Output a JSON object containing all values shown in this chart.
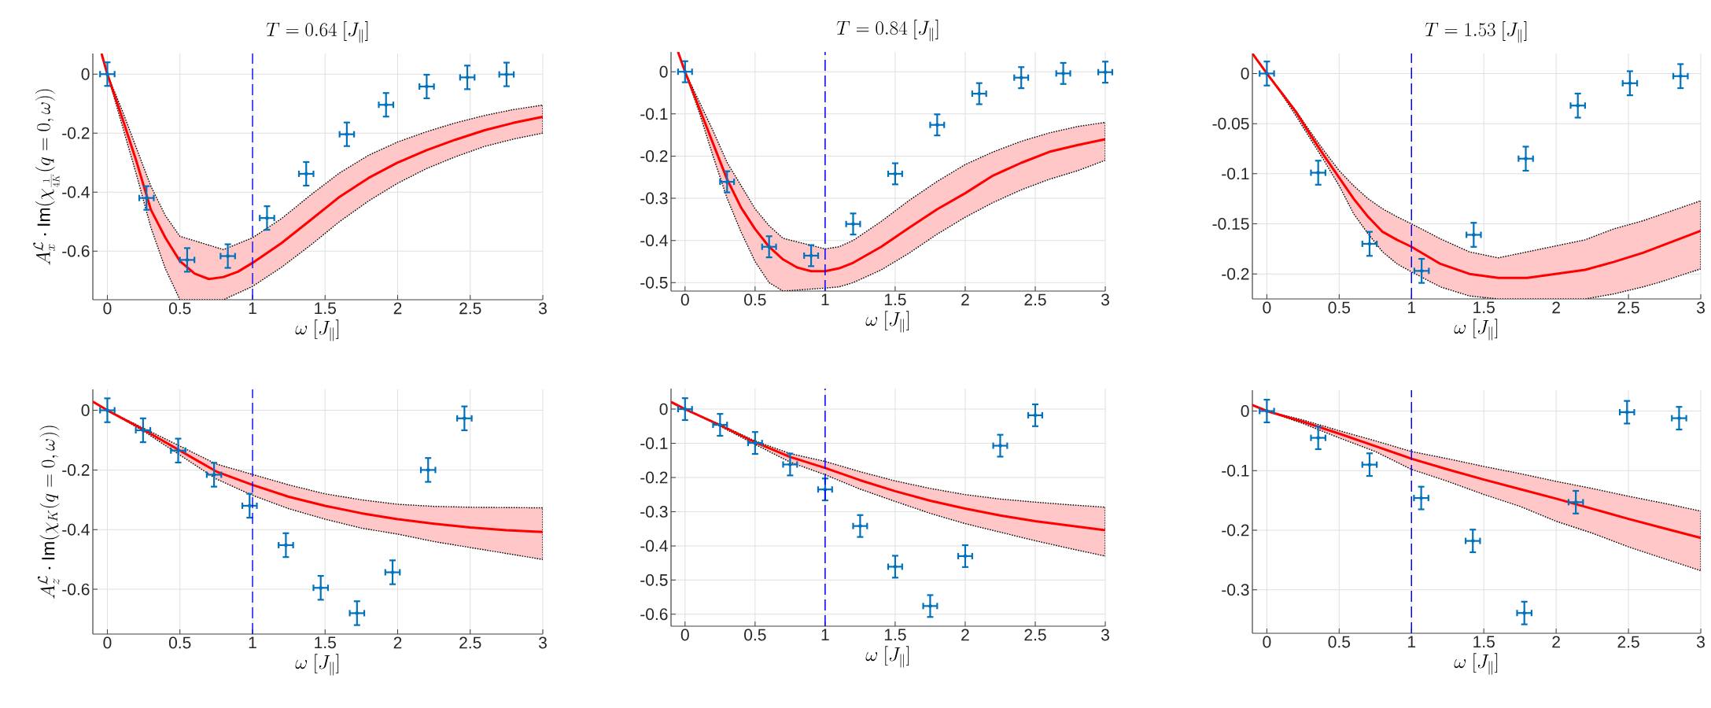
{
  "chart_data": [
    {
      "type": "scatter",
      "title": "T = 0.64\\ [J_{\\parallel}]",
      "xlabel": "\\omega\\ [J_{\\parallel}]",
      "ylabel": "A^{\\mathcal{L}}_{x} \\cdot \\mathrm{Im}(\\chi_{\\frac{1}{4K}}(q=0,\\omega))",
      "xlim": [
        -0.1,
        3
      ],
      "ylim": [
        -0.765,
        0.07
      ],
      "xticks": [
        0,
        0.5,
        1,
        1.5,
        2,
        2.5,
        3
      ],
      "yticks": [
        -0.6,
        -0.4,
        -0.2,
        0
      ],
      "grid": true,
      "ref_lines": [
        {
          "axis": "x",
          "value": 1,
          "color": "#0000ff",
          "line_style": "dashed"
        }
      ],
      "series": [
        {
          "type": "line",
          "color": "#ff0000",
          "marker": "none",
          "x": [
            -0.04,
            0,
            0.1,
            0.2,
            0.3,
            0.4,
            0.5,
            0.8,
            1.0,
            1.2,
            1.4,
            1.6,
            1.8,
            2.0,
            2.2,
            2.4,
            2.6,
            2.8,
            3.0
          ],
          "values": [
            null,
            null,
            null,
            null,
            null,
            null,
            null,
            null,
            null,
            null,
            null,
            null,
            null,
            null,
            null,
            null,
            null,
            null,
            null
          ],
          "upper": [
            0.07,
            0,
            -0.12,
            -0.25,
            -0.38,
            -0.48,
            -0.55,
            -0.595,
            -0.555,
            -0.49,
            -0.41,
            -0.335,
            -0.275,
            -0.23,
            -0.195,
            -0.165,
            -0.14,
            -0.12,
            -0.105
          ],
          "lower": [
            0.07,
            0,
            -0.17,
            -0.34,
            -0.52,
            -0.66,
            -0.765,
            -0.765,
            -0.72,
            -0.655,
            -0.58,
            -0.5,
            -0.43,
            -0.37,
            -0.32,
            -0.28,
            -0.245,
            -0.22,
            -0.2
          ]
        },
        {
          "type": "line",
          "color": "#ff0000",
          "marker": "none",
          "x": [
            -0.04,
            0,
            0.1,
            0.2,
            0.3,
            0.4,
            0.5,
            0.6,
            0.7,
            0.8,
            0.9,
            1.0,
            1.2,
            1.4,
            1.6,
            1.8,
            2.0,
            2.2,
            2.4,
            2.6,
            2.8,
            3.0
          ],
          "values": [
            0.07,
            0,
            -0.145,
            -0.295,
            -0.46,
            -0.555,
            -0.634,
            -0.676,
            -0.695,
            -0.688,
            -0.67,
            -0.64,
            -0.573,
            -0.495,
            -0.416,
            -0.352,
            -0.3,
            -0.258,
            -0.222,
            -0.19,
            -0.165,
            -0.145
          ]
        },
        {
          "type": "scatter",
          "color": "#0072bd",
          "marker": "circle",
          "x": [
            0,
            0.27,
            0.55,
            0.83,
            1.1,
            1.37,
            1.65,
            1.92,
            2.2,
            2.48,
            2.75
          ],
          "values": [
            0,
            -0.42,
            -0.63,
            -0.617,
            -0.488,
            -0.338,
            -0.204,
            -0.104,
            -0.042,
            -0.011,
            -0.001
          ],
          "errors": [
            0.04,
            0.04,
            0.04,
            0.04,
            0.04,
            0.04,
            0.04,
            0.04,
            0.04,
            0.04,
            0.04
          ],
          "xerrors": [
            0.05,
            0.05,
            0.05,
            0.05,
            0.05,
            0.05,
            0.05,
            0.05,
            0.05,
            0.05,
            0.05
          ]
        }
      ]
    },
    {
      "type": "scatter",
      "title": "T = 0.84\\ [J_{\\parallel}]",
      "xlabel": "\\omega\\ [J_{\\parallel}]",
      "xlim": [
        -0.1,
        3
      ],
      "ylim": [
        -0.52,
        0.047
      ],
      "xticks": [
        0,
        0.5,
        1,
        1.5,
        2,
        2.5,
        3
      ],
      "yticks": [
        -0.5,
        -0.4,
        -0.3,
        -0.2,
        -0.1,
        0
      ],
      "grid": true,
      "ref_lines": [
        {
          "axis": "x",
          "value": 1,
          "color": "#0000ff",
          "line_style": "dashed"
        }
      ],
      "series": [
        {
          "type": "line",
          "color": "#ff0000",
          "marker": "none",
          "x": [
            -0.05,
            0,
            0.1,
            0.2,
            0.3,
            0.4,
            0.5,
            0.6,
            0.7,
            1.0,
            1.1,
            1.2,
            1.4,
            1.6,
            1.8,
            2.0,
            2.2,
            2.4,
            2.6,
            2.8,
            3.0
          ],
          "values": [
            null,
            null,
            null,
            null,
            null,
            null,
            null,
            null,
            null,
            null,
            null,
            null,
            null,
            null,
            null,
            null,
            null,
            null,
            null,
            null,
            null
          ],
          "upper": [
            0.047,
            0,
            -0.07,
            -0.14,
            -0.215,
            -0.27,
            -0.325,
            -0.365,
            -0.395,
            -0.42,
            -0.415,
            -0.4,
            -0.355,
            -0.305,
            -0.26,
            -0.22,
            -0.19,
            -0.165,
            -0.145,
            -0.13,
            -0.12
          ],
          "lower": [
            0.047,
            0,
            -0.095,
            -0.2,
            -0.3,
            -0.38,
            -0.45,
            -0.5,
            -0.52,
            -0.513,
            -0.51,
            -0.5,
            -0.47,
            -0.43,
            -0.385,
            -0.345,
            -0.31,
            -0.28,
            -0.255,
            -0.235,
            -0.21
          ]
        },
        {
          "type": "line",
          "color": "#ff0000",
          "marker": "none",
          "x": [
            -0.05,
            0,
            0.1,
            0.2,
            0.3,
            0.4,
            0.5,
            0.6,
            0.7,
            0.8,
            0.9,
            1.0,
            1.1,
            1.2,
            1.4,
            1.6,
            1.8,
            2.0,
            2.2,
            2.4,
            2.6,
            2.8,
            3.0
          ],
          "values": [
            0.047,
            0,
            -0.085,
            -0.17,
            -0.255,
            -0.322,
            -0.373,
            -0.415,
            -0.445,
            -0.464,
            -0.473,
            -0.473,
            -0.466,
            -0.453,
            -0.415,
            -0.37,
            -0.326,
            -0.288,
            -0.246,
            -0.216,
            -0.19,
            -0.174,
            -0.16
          ]
        },
        {
          "type": "scatter",
          "color": "#0072bd",
          "marker": "circle",
          "x": [
            0,
            0.3,
            0.6,
            0.9,
            1.2,
            1.5,
            1.8,
            2.1,
            2.4,
            2.7,
            3.0
          ],
          "values": [
            0,
            -0.261,
            -0.415,
            -0.436,
            -0.361,
            -0.242,
            -0.126,
            -0.052,
            -0.014,
            -0.004,
            -0.001
          ],
          "errors": [
            0.025,
            0.025,
            0.025,
            0.025,
            0.025,
            0.025,
            0.025,
            0.025,
            0.025,
            0.025,
            0.025
          ],
          "xerrors": [
            0.05,
            0.05,
            0.05,
            0.05,
            0.05,
            0.05,
            0.05,
            0.05,
            0.05,
            0.05,
            0.05
          ]
        }
      ]
    },
    {
      "type": "scatter",
      "title": "T = 1.53\\ [J_{\\parallel}]",
      "xlabel": "\\omega\\ [J_{\\parallel}]",
      "xlim": [
        -0.1,
        3
      ],
      "ylim": [
        -0.225,
        0.02
      ],
      "xticks": [
        0,
        0.5,
        1,
        1.5,
        2,
        2.5,
        3
      ],
      "yticks": [
        -0.2,
        -0.15,
        -0.1,
        -0.05,
        0
      ],
      "grid": true,
      "ref_lines": [
        {
          "axis": "x",
          "value": 1,
          "color": "#0000ff",
          "line_style": "dashed"
        }
      ],
      "series": [
        {
          "type": "line",
          "color": "#ff0000",
          "marker": "none",
          "x": [
            -0.1,
            0,
            0.1,
            0.2,
            0.3,
            0.4,
            0.5,
            0.6,
            0.7,
            0.8,
            0.9,
            1.0,
            1.2,
            1.4,
            1.6,
            2.2,
            2.4,
            2.6,
            2.7,
            3.0
          ],
          "values": [
            null,
            null,
            null,
            null,
            null,
            null,
            null,
            null,
            null,
            null,
            null,
            null,
            null,
            null,
            null,
            null,
            null,
            null,
            null,
            null
          ],
          "upper": [
            0.02,
            0,
            -0.018,
            -0.037,
            -0.058,
            -0.078,
            -0.097,
            -0.112,
            -0.125,
            -0.135,
            -0.143,
            -0.15,
            -0.165,
            -0.178,
            -0.184,
            -0.166,
            -0.155,
            -0.147,
            -0.142,
            -0.127
          ],
          "lower": [
            0.02,
            0,
            -0.02,
            -0.042,
            -0.065,
            -0.088,
            -0.112,
            -0.14,
            -0.16,
            -0.178,
            -0.19,
            -0.198,
            -0.213,
            -0.222,
            -0.225,
            -0.225,
            -0.22,
            -0.213,
            -0.209,
            -0.195
          ]
        },
        {
          "type": "line",
          "color": "#ff0000",
          "marker": "none",
          "x": [
            -0.1,
            0,
            0.1,
            0.2,
            0.3,
            0.4,
            0.5,
            0.6,
            0.7,
            0.8,
            0.9,
            1.0,
            1.2,
            1.4,
            1.6,
            1.8,
            2.0,
            2.2,
            2.4,
            2.6,
            2.8,
            3.0
          ],
          "values": [
            0.02,
            0,
            -0.019,
            -0.038,
            -0.061,
            -0.083,
            -0.104,
            -0.125,
            -0.143,
            -0.158,
            -0.166,
            -0.173,
            -0.19,
            -0.2,
            -0.204,
            -0.204,
            -0.2,
            -0.196,
            -0.188,
            -0.179,
            -0.168,
            -0.157
          ]
        },
        {
          "color": "#0072bd",
          "marker": "circle",
          "x": [
            0,
            0.355,
            0.71,
            1.07,
            1.43,
            1.79,
            2.15,
            2.51,
            2.86
          ],
          "values": [
            0,
            -0.099,
            -0.17,
            -0.197,
            -0.161,
            -0.085,
            -0.032,
            -0.0097,
            -0.0026
          ],
          "errors": [
            0.012,
            0.012,
            0.012,
            0.012,
            0.012,
            0.012,
            0.012,
            0.012,
            0.012
          ],
          "xerrors": [
            0.05,
            0.05,
            0.05,
            0.05,
            0.05,
            0.05,
            0.05,
            0.05,
            0.05
          ]
        }
      ]
    },
    {
      "type": "scatter",
      "xlabel": "\\omega\\ [J_{\\parallel}]",
      "ylabel": "A^{\\mathcal{L}}_{z} \\cdot \\mathrm{Im}(\\chi_{K}(q=0,\\omega))",
      "xlim": [
        -0.1,
        3
      ],
      "ylim": [
        -0.75,
        0.07
      ],
      "xticks": [
        0,
        0.5,
        1,
        1.5,
        2,
        2.5,
        3
      ],
      "yticks": [
        -0.6,
        -0.4,
        -0.2,
        0
      ],
      "grid": true,
      "ref_lines": [
        {
          "axis": "x",
          "value": 1,
          "color": "#0000ff",
          "line_style": "dashed"
        }
      ],
      "series": [
        {
          "type": "line",
          "color": "#ff0000",
          "marker": "none",
          "x": [
            -0.1,
            0,
            0.25,
            0.5,
            0.75,
            1.0,
            1.25,
            1.5,
            1.75,
            2.0,
            2.25,
            2.5,
            2.75,
            3.0
          ],
          "values": [
            0.029,
            0,
            -0.065,
            -0.135,
            -0.205,
            -0.25,
            -0.29,
            -0.32,
            -0.345,
            -0.365,
            -0.38,
            -0.393,
            -0.402,
            -0.408
          ],
          "upper": [
            0.029,
            0,
            -0.06,
            -0.12,
            -0.18,
            -0.215,
            -0.25,
            -0.28,
            -0.3,
            -0.315,
            -0.322,
            -0.325,
            -0.326,
            -0.327
          ],
          "lower": [
            0.029,
            0,
            -0.07,
            -0.15,
            -0.23,
            -0.285,
            -0.33,
            -0.365,
            -0.395,
            -0.415,
            -0.44,
            -0.46,
            -0.48,
            -0.5
          ]
        },
        {
          "color": "#0072bd",
          "marker": "circle",
          "x": [
            0,
            0.246,
            0.488,
            0.735,
            0.98,
            1.23,
            1.47,
            1.72,
            1.965,
            2.21,
            2.46
          ],
          "values": [
            0,
            -0.067,
            -0.135,
            -0.216,
            -0.32,
            -0.452,
            -0.595,
            -0.68,
            -0.543,
            -0.2,
            -0.027
          ],
          "errors": [
            0.04,
            0.04,
            0.04,
            0.04,
            0.04,
            0.04,
            0.04,
            0.04,
            0.04,
            0.04,
            0.04
          ],
          "xerrors": [
            0.05,
            0.05,
            0.05,
            0.05,
            0.05,
            0.05,
            0.05,
            0.05,
            0.05,
            0.05,
            0.05
          ]
        }
      ]
    },
    {
      "type": "scatter",
      "xlabel": "\\omega\\ [J_{\\parallel}]",
      "xlim": [
        -0.1,
        3
      ],
      "ylim": [
        -0.635,
        0.06
      ],
      "xticks": [
        0,
        0.5,
        1,
        1.5,
        2,
        2.5,
        3
      ],
      "yticks": [
        -0.6,
        -0.5,
        -0.4,
        -0.3,
        -0.2,
        -0.1,
        0
      ],
      "grid": true,
      "ref_lines": [
        {
          "axis": "x",
          "value": 1,
          "color": "#0000ff",
          "line_style": "dashed"
        }
      ],
      "series": [
        {
          "type": "line",
          "color": "#ff0000",
          "marker": "none",
          "x": [
            -0.1,
            0,
            0.25,
            0.5,
            0.75,
            1.0,
            1.25,
            1.5,
            1.75,
            2.0,
            2.25,
            2.5,
            2.75,
            3.0
          ],
          "values": [
            0.021,
            0,
            -0.047,
            -0.097,
            -0.14,
            -0.172,
            -0.208,
            -0.24,
            -0.268,
            -0.291,
            -0.311,
            -0.328,
            -0.341,
            -0.354
          ],
          "upper": [
            0.021,
            0,
            -0.045,
            -0.093,
            -0.13,
            -0.153,
            -0.183,
            -0.21,
            -0.232,
            -0.25,
            -0.263,
            -0.272,
            -0.28,
            -0.287
          ],
          "lower": [
            0.021,
            0,
            -0.05,
            -0.103,
            -0.155,
            -0.192,
            -0.234,
            -0.27,
            -0.305,
            -0.335,
            -0.36,
            -0.385,
            -0.408,
            -0.43
          ]
        },
        {
          "color": "#0072bd",
          "marker": "circle",
          "x": [
            0,
            0.25,
            0.5,
            0.75,
            1.0,
            1.25,
            1.5,
            1.75,
            2.0,
            2.25,
            2.5
          ],
          "values": [
            0,
            -0.046,
            -0.099,
            -0.162,
            -0.235,
            -0.342,
            -0.461,
            -0.576,
            -0.43,
            -0.107,
            -0.018
          ],
          "errors": [
            0.032,
            0.032,
            0.032,
            0.032,
            0.032,
            0.032,
            0.032,
            0.032,
            0.032,
            0.032,
            0.032
          ],
          "xerrors": [
            0.05,
            0.05,
            0.05,
            0.05,
            0.05,
            0.05,
            0.05,
            0.05,
            0.05,
            0.05,
            0.05
          ]
        }
      ]
    },
    {
      "type": "scatter",
      "xlabel": "\\omega\\ [J_{\\parallel}]",
      "xlim": [
        -0.1,
        3
      ],
      "ylim": [
        -0.373,
        0.035
      ],
      "xticks": [
        0,
        0.5,
        1,
        1.5,
        2,
        2.5,
        3
      ],
      "yticks": [
        -0.3,
        -0.2,
        -0.1,
        0
      ],
      "grid": true,
      "ref_lines": [
        {
          "axis": "x",
          "value": 1,
          "color": "#0000ff",
          "line_style": "dashed"
        }
      ],
      "series": [
        {
          "type": "line",
          "color": "#ff0000",
          "marker": "none",
          "x": [
            -0.1,
            0,
            0.25,
            0.5,
            0.75,
            1.0,
            1.25,
            1.5,
            1.75,
            2.0,
            2.25,
            2.5,
            2.75,
            3.0
          ],
          "values": [
            0.01,
            0,
            -0.018,
            -0.038,
            -0.059,
            -0.08,
            -0.098,
            -0.115,
            -0.131,
            -0.147,
            -0.164,
            -0.181,
            -0.197,
            -0.213
          ],
          "upper": [
            0.01,
            0,
            -0.015,
            -0.033,
            -0.05,
            -0.068,
            -0.08,
            -0.093,
            -0.105,
            -0.118,
            -0.13,
            -0.143,
            -0.155,
            -0.168
          ],
          "lower": [
            0.01,
            0,
            -0.021,
            -0.045,
            -0.068,
            -0.098,
            -0.118,
            -0.14,
            -0.16,
            -0.185,
            -0.205,
            -0.228,
            -0.248,
            -0.268
          ]
        },
        {
          "color": "#0072bd",
          "marker": "circle",
          "x": [
            0,
            0.355,
            0.71,
            1.067,
            1.424,
            1.78,
            2.136,
            2.49,
            2.85
          ],
          "values": [
            0,
            -0.045,
            -0.09,
            -0.146,
            -0.218,
            -0.339,
            -0.153,
            -0.002,
            -0.012
          ],
          "errors": [
            0.019,
            0.019,
            0.019,
            0.019,
            0.019,
            0.019,
            0.019,
            0.019,
            0.019
          ],
          "xerrors": [
            0.05,
            0.05,
            0.05,
            0.05,
            0.05,
            0.05,
            0.05,
            0.05,
            0.05
          ]
        }
      ]
    }
  ]
}
